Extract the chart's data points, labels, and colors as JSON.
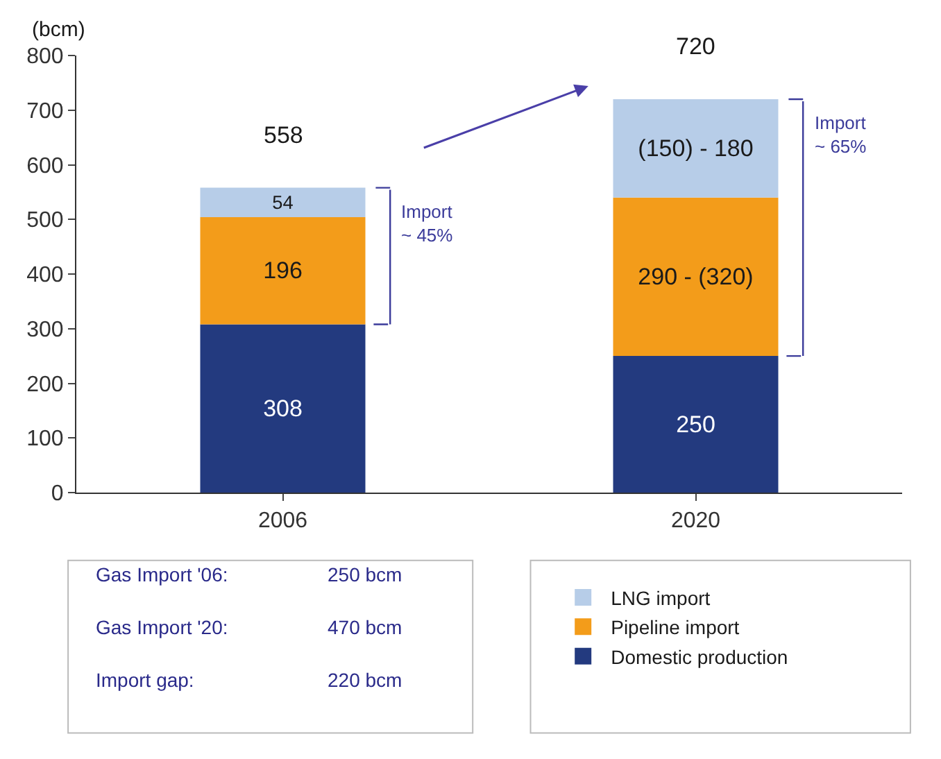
{
  "chart_data": {
    "type": "bar",
    "stacked": true,
    "ylabel": "(bcm)",
    "categories": [
      "2006",
      "2020"
    ],
    "series": [
      {
        "name": "Domestic production",
        "color": "#233a7f",
        "values": [
          308,
          250
        ],
        "value_labels": [
          "308",
          "250"
        ]
      },
      {
        "name": "Pipeline import",
        "color": "#f39c1a",
        "values": [
          196,
          290
        ],
        "value_labels": [
          "196",
          "290 - (320)"
        ]
      },
      {
        "name": "LNG import",
        "color": "#b7cde8",
        "values": [
          54,
          180
        ],
        "value_labels": [
          "54",
          "(150) - 180"
        ]
      }
    ],
    "totals": [
      "558",
      "720"
    ],
    "ylim": [
      0,
      800
    ],
    "yticks": [
      0,
      100,
      200,
      300,
      400,
      500,
      600,
      700,
      800
    ],
    "legend": "bottom right",
    "annotations": [
      "Import\n~ 45%",
      "Import\n~ 65%",
      "Gas Import '06:",
      "250 bcm",
      "Gas Import '20:",
      "470 bcm",
      "Import gap:",
      "220 bcm"
    ]
  }
}
